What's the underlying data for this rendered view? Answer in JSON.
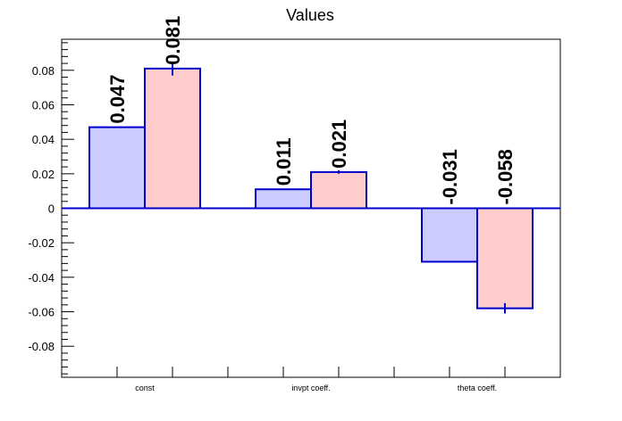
{
  "chart_data": {
    "type": "bar",
    "title": "Values",
    "xlabel": "",
    "ylabel": "",
    "categories": [
      "const",
      "invpt coeff.",
      "theta coeff."
    ],
    "ylim": [
      -0.098,
      0.098
    ],
    "yticks": [
      "-0.08",
      "-0.06",
      "-0.04",
      "-0.02",
      "0",
      "0.02",
      "0.04",
      "0.06",
      "0.08"
    ],
    "grid": false,
    "series": [
      {
        "fill": "#ccccff",
        "edge": "#0000cc",
        "values": [
          0.047,
          0.011,
          -0.031
        ],
        "labels": [
          "0.047",
          "0.011",
          "-0.031"
        ],
        "errors": [
          0,
          0,
          0
        ]
      },
      {
        "fill": "#ffcccc",
        "edge": "#0000cc",
        "values": [
          0.081,
          0.021,
          -0.058
        ],
        "labels": [
          "0.081",
          "0.021",
          "-0.058"
        ],
        "errors": [
          0.004,
          0.001,
          0.003
        ]
      }
    ]
  }
}
